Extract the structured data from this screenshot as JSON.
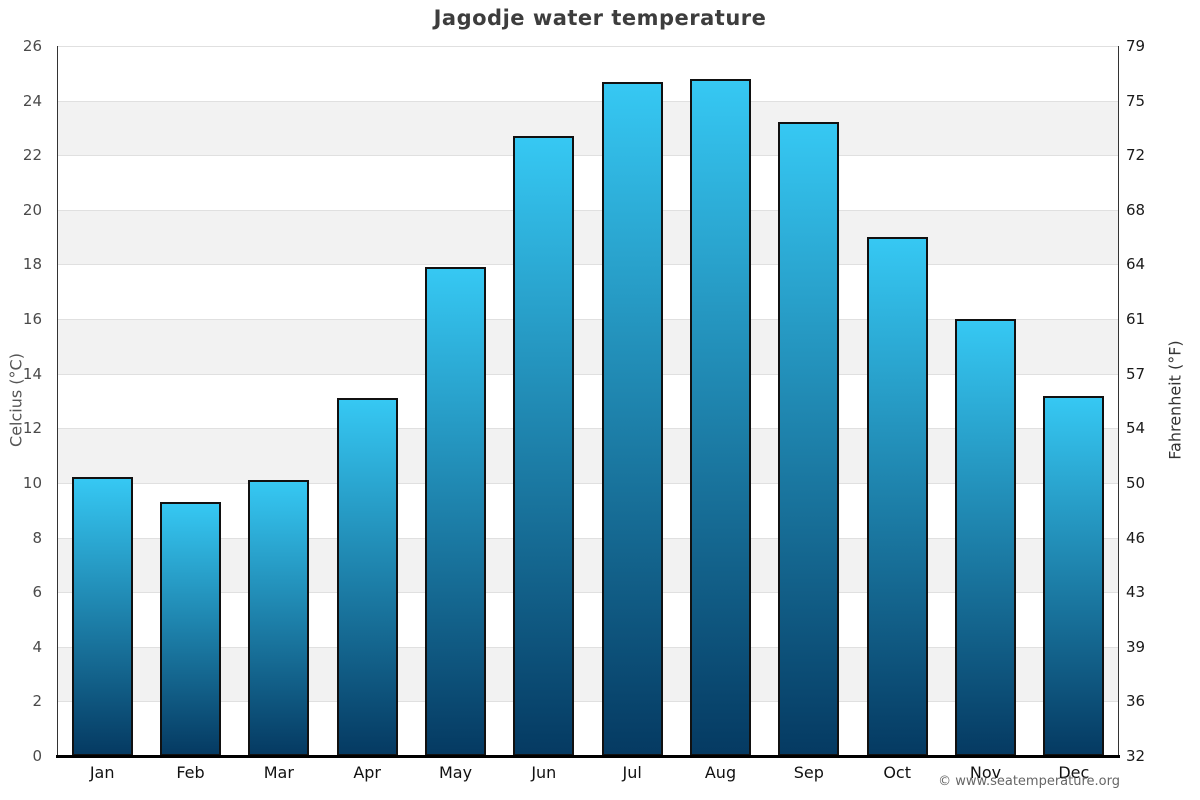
{
  "title": "Jagodje water temperature",
  "watermark": "© www.seatemperature.org",
  "chart_data": {
    "type": "bar",
    "title": "Jagodje water temperature",
    "categories": [
      "Jan",
      "Feb",
      "Mar",
      "Apr",
      "May",
      "Jun",
      "Jul",
      "Aug",
      "Sep",
      "Oct",
      "Nov",
      "Dec"
    ],
    "values": [
      10.2,
      9.3,
      10.1,
      13.1,
      17.9,
      22.7,
      24.7,
      24.8,
      23.2,
      19.0,
      16.0,
      13.2
    ],
    "y_axis_left": {
      "label": "Celcius (°C)",
      "ticks": [
        26,
        24,
        22,
        20,
        18,
        16,
        14,
        12,
        10,
        8,
        6,
        4,
        2,
        0
      ]
    },
    "y_axis_right": {
      "label": "Fahrenheit (°F)",
      "ticks": [
        79,
        75,
        72,
        68,
        64,
        61,
        57,
        54,
        50,
        46,
        43,
        39,
        36,
        32
      ]
    },
    "ylim": [
      0,
      26
    ],
    "grid": "alternating horizontal bands every 2°C",
    "legend": "none",
    "colors": {
      "bar_gradient_top": "#36c8f3",
      "bar_gradient_bottom": "#053a62",
      "bar_border": "#111111",
      "band_gray": "#f2f2f2",
      "band_white": "#ffffff",
      "gridline": "#e0e0e0",
      "axis_line": "#333333",
      "bottom_axis": "#000000"
    }
  }
}
